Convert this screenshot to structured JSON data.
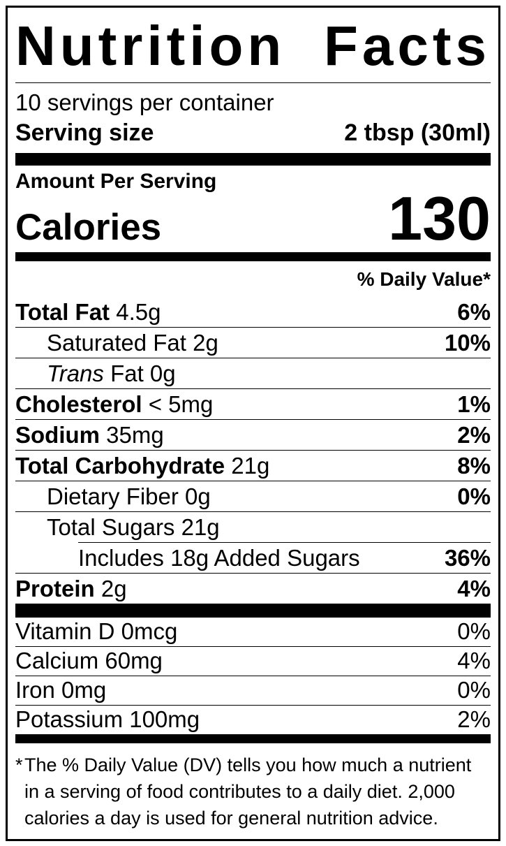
{
  "colors": {
    "ink": "#000000",
    "paper": "#ffffff"
  },
  "label": {
    "title": "Nutrition Facts",
    "servings_per_container": "10 servings per container",
    "serving_size_label": "Serving size",
    "serving_size_value": "2 tbsp (30ml)",
    "amount_per_serving": "Amount Per Serving",
    "calories_label": "Calories",
    "calories_value": "130",
    "daily_value_header": "% Daily Value*",
    "rows": [
      {
        "parts": [
          {
            "t": "Total Fat",
            "b": 1
          },
          {
            "t": " 4.5g"
          }
        ],
        "dv": "6%",
        "indent": 0
      },
      {
        "parts": [
          {
            "t": "Saturated Fat 2g"
          }
        ],
        "dv": "10%",
        "indent": 1
      },
      {
        "parts": [
          {
            "t": "Trans",
            "i": 1
          },
          {
            "t": " Fat 0g"
          }
        ],
        "dv": "",
        "indent": 1
      },
      {
        "parts": [
          {
            "t": "Cholesterol",
            "b": 1
          },
          {
            "t": " < 5mg"
          }
        ],
        "dv": "1%",
        "indent": 0
      },
      {
        "parts": [
          {
            "t": "Sodium",
            "b": 1
          },
          {
            "t": " 35mg"
          }
        ],
        "dv": "2%",
        "indent": 0
      },
      {
        "parts": [
          {
            "t": "Total Carbohydrate",
            "b": 1
          },
          {
            "t": " 21g"
          }
        ],
        "dv": "8%",
        "indent": 0
      },
      {
        "parts": [
          {
            "t": "Dietary Fiber 0g"
          }
        ],
        "dv": "0%",
        "indent": 1
      },
      {
        "parts": [
          {
            "t": "Total Sugars 21g"
          }
        ],
        "dv": "",
        "indent": 1
      },
      {
        "parts": [
          {
            "t": "Includes 18g Added Sugars"
          }
        ],
        "dv": "36%",
        "indent": 2
      },
      {
        "parts": [
          {
            "t": "Protein",
            "b": 1
          },
          {
            "t": " 2g"
          }
        ],
        "dv": "4%",
        "indent": 0
      }
    ],
    "micronutrients": [
      {
        "text": "Vitamin D 0mcg",
        "dv": "0%"
      },
      {
        "text": "Calcium 60mg",
        "dv": "4%"
      },
      {
        "text": "Iron 0mg",
        "dv": "0%"
      },
      {
        "text": "Potassium 100mg",
        "dv": "2%"
      }
    ],
    "footnote_marker": "*",
    "footnote": "The % Daily Value (DV) tells you how much a nutrient in a serving of food contributes to a daily diet. 2,000 calories a day is used for general nutrition advice."
  }
}
